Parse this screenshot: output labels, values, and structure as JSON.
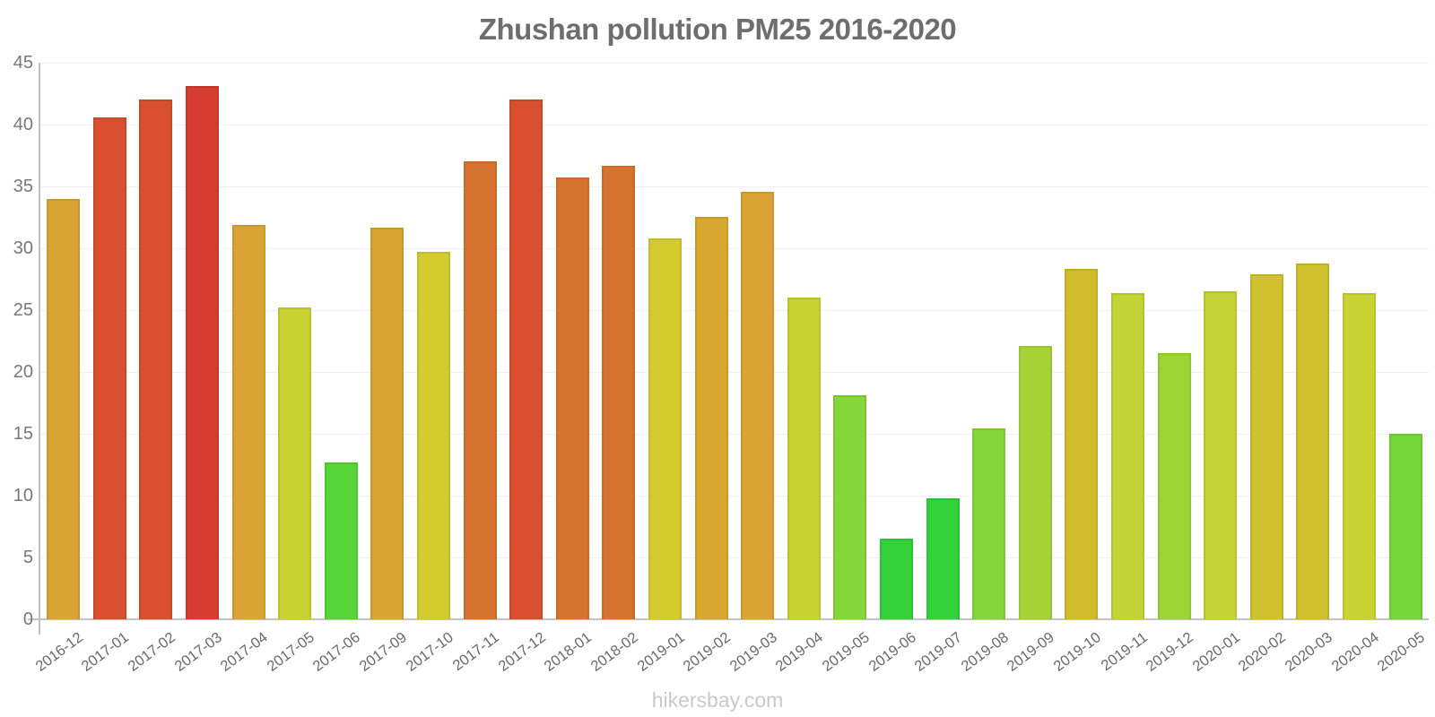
{
  "title": "Zhushan pollution PM25 2016-2020",
  "watermark": "hikersbay.com",
  "palette": {
    "title_text": "#6e6e6e",
    "axis_line": "#c4c4c6",
    "y_tick_text": "#77787b",
    "x_tick_text": "#69696b",
    "gridline": "#f0f0f2",
    "watermark_text": "#c9c9c9",
    "background": "#ffffff"
  },
  "chart_data": {
    "type": "bar",
    "title": "Zhushan pollution PM25 2016-2020",
    "xlabel": "",
    "ylabel": "",
    "ylim": [
      0,
      45
    ],
    "yticks": [
      0,
      5,
      10,
      15,
      20,
      25,
      30,
      35,
      40,
      45
    ],
    "grid": true,
    "legend": false,
    "categories": [
      "2016-12",
      "2017-01",
      "2017-02",
      "2017-03",
      "2017-04",
      "2017-05",
      "2017-06",
      "2017-09",
      "2017-10",
      "2017-11",
      "2017-12",
      "2018-01",
      "2018-02",
      "2019-01",
      "2019-02",
      "2019-03",
      "2019-04",
      "2019-05",
      "2019-06",
      "2019-07",
      "2019-08",
      "2019-09",
      "2019-10",
      "2019-11",
      "2019-12",
      "2020-01",
      "2020-02",
      "2020-03",
      "2020-04",
      "2020-05"
    ],
    "values": [
      34.0,
      40.6,
      42.0,
      43.1,
      31.9,
      25.2,
      12.7,
      31.7,
      29.7,
      37.0,
      42.0,
      35.7,
      36.7,
      30.8,
      32.5,
      34.6,
      26.0,
      18.1,
      6.5,
      9.8,
      15.4,
      22.1,
      28.3,
      26.4,
      21.5,
      26.5,
      27.9,
      28.8,
      26.4,
      15.0
    ],
    "bar_colors": [
      "#d9a433",
      "#d8502f",
      "#d8502f",
      "#d63c31",
      "#d9a433",
      "#c9d434",
      "#57d437",
      "#d9a433",
      "#d4cb31",
      "#d8732f",
      "#d8502f",
      "#d8732f",
      "#d8732f",
      "#d4cb31",
      "#d9a82f",
      "#d9a433",
      "#c6d434",
      "#85d63b",
      "#34d23a",
      "#34d23a",
      "#84d63c",
      "#a6d236",
      "#d0bb2c",
      "#c2d433",
      "#9cd434",
      "#c4d434",
      "#cfc22e",
      "#cfc02c",
      "#c9d434",
      "#76d63a"
    ]
  }
}
